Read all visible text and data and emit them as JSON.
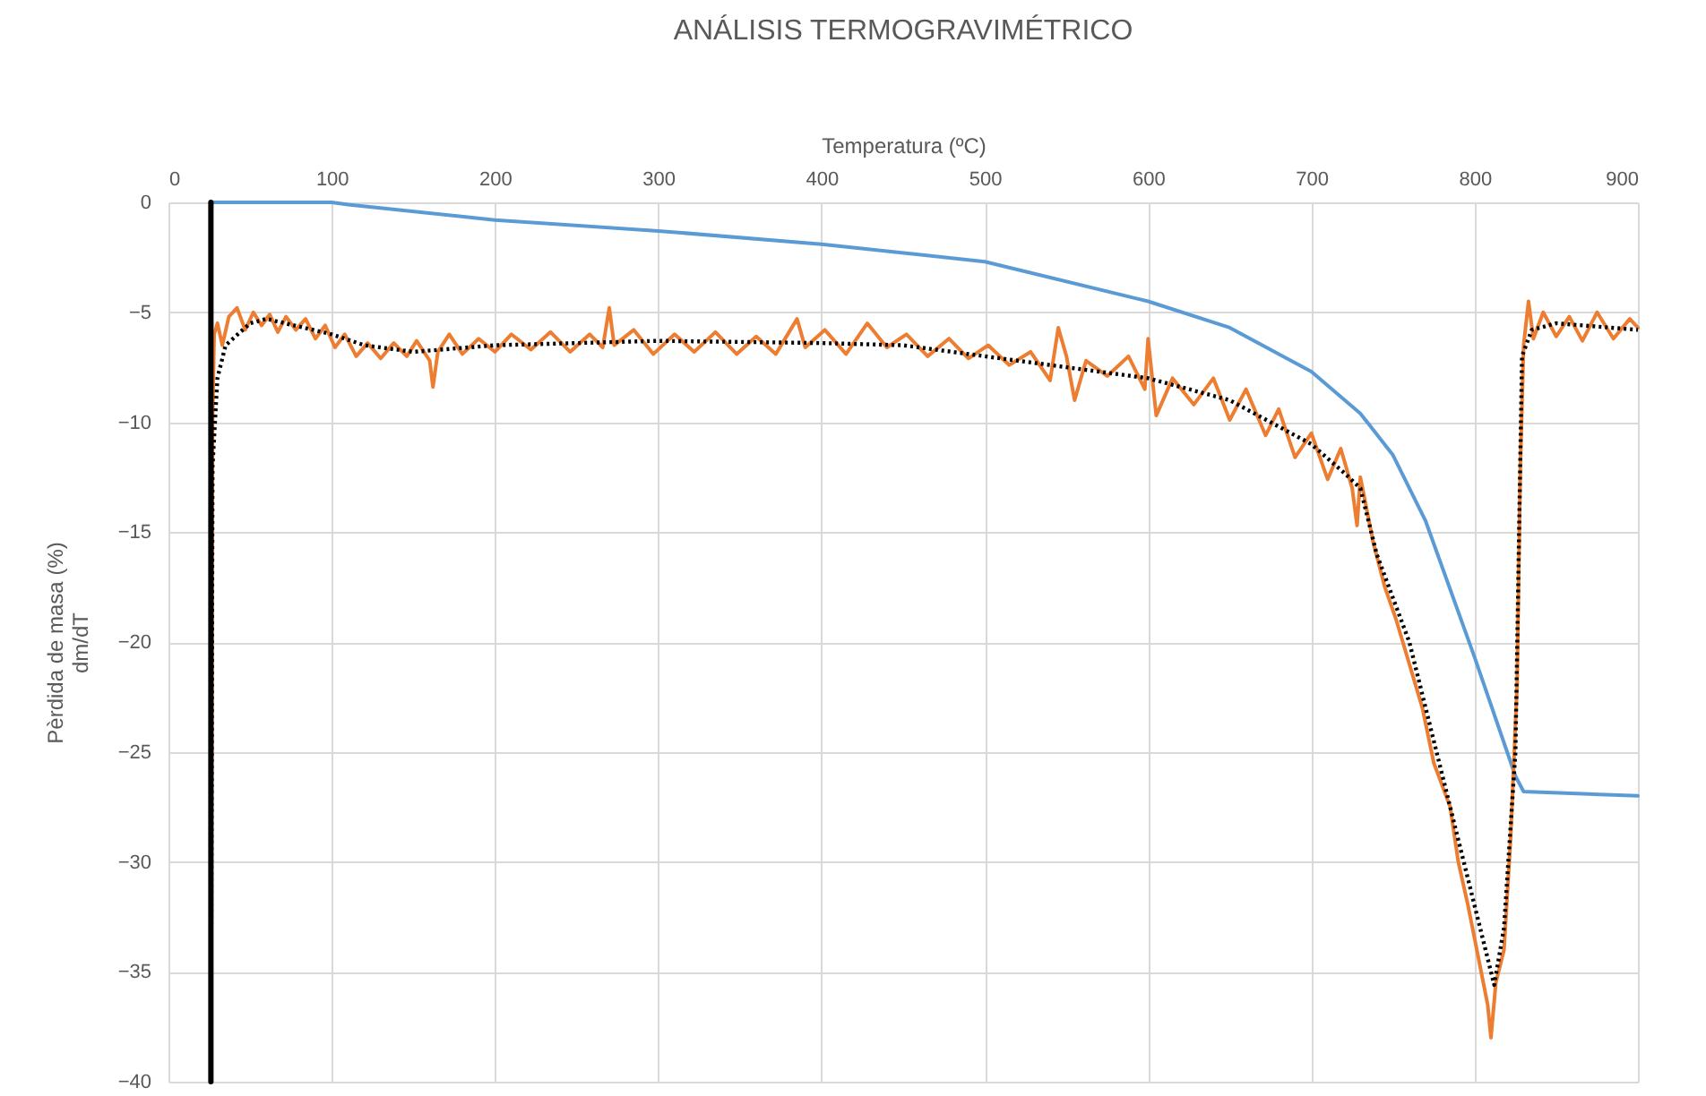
{
  "chart_data": {
    "type": "line",
    "title": "ANÁLISIS TERMOGRAVIMÉTRICO",
    "xlabel": "Temperatura (ºC)",
    "ylabel": "Pèrdida de masa (%)\ndm/dT",
    "xlim": [
      0,
      900
    ],
    "xticks": [
      0,
      100,
      200,
      300,
      400,
      500,
      600,
      700,
      800,
      900
    ],
    "ylim": [
      -40,
      0
    ],
    "yticks": [
      0,
      -5,
      -10,
      -15,
      -20,
      -25,
      -30,
      -35,
      -40
    ],
    "grid": true,
    "series": [
      {
        "color": "#5b9bd5",
        "line_style": "solid",
        "x": [
          26,
          50,
          100,
          110,
          200,
          300,
          400,
          500,
          600,
          650,
          700,
          730,
          750,
          770,
          800,
          825,
          830,
          900
        ],
        "values": [
          0,
          0,
          0,
          -0.1,
          -0.8,
          -1.3,
          -1.9,
          -2.7,
          -4.5,
          -5.7,
          -7.7,
          -9.6,
          -11.5,
          -14.5,
          -20.7,
          -26.1,
          -26.8,
          -27
        ]
      },
      {
        "color": "#ed7d31",
        "line_style": "solid",
        "x": [
          26,
          27,
          28,
          30,
          33,
          37,
          42,
          47,
          52,
          57,
          62,
          67,
          72,
          78,
          84,
          90,
          96,
          102,
          108,
          115,
          122,
          130,
          138,
          146,
          152,
          160,
          162,
          165,
          172,
          180,
          190,
          200,
          210,
          222,
          234,
          246,
          258,
          266,
          270,
          273,
          285,
          297,
          310,
          322,
          335,
          348,
          360,
          372,
          385,
          390,
          402,
          415,
          428,
          440,
          452,
          465,
          478,
          490,
          502,
          515,
          528,
          540,
          545,
          550,
          555,
          562,
          575,
          588,
          598,
          600,
          605,
          615,
          628,
          640,
          650,
          660,
          672,
          680,
          690,
          700,
          710,
          718,
          725,
          728,
          730,
          738,
          745,
          752,
          760,
          768,
          775,
          780,
          785,
          790,
          796,
          800,
          804,
          808,
          810,
          813,
          818,
          822,
          826,
          828,
          830,
          833,
          836,
          842,
          850,
          858,
          866,
          875,
          885,
          895,
          900
        ],
        "values": [
          -40,
          -10,
          -6,
          -5.5,
          -6.5,
          -5.2,
          -4.8,
          -5.8,
          -5,
          -5.6,
          -5.1,
          -5.9,
          -5.2,
          -5.8,
          -5.3,
          -6.2,
          -5.6,
          -6.6,
          -6,
          -7,
          -6.4,
          -7.1,
          -6.4,
          -7,
          -6.3,
          -7.2,
          -8.4,
          -6.8,
          -6,
          -6.9,
          -6.2,
          -6.8,
          -6,
          -6.7,
          -5.9,
          -6.8,
          -6,
          -6.6,
          -4.8,
          -6.5,
          -5.8,
          -6.9,
          -6,
          -6.8,
          -5.9,
          -6.9,
          -6.1,
          -6.9,
          -5.3,
          -6.6,
          -5.8,
          -6.9,
          -5.5,
          -6.6,
          -6,
          -7,
          -6.2,
          -7.1,
          -6.5,
          -7.4,
          -6.8,
          -8.1,
          -5.7,
          -7,
          -9,
          -7.2,
          -7.9,
          -7,
          -8.5,
          -6.2,
          -9.7,
          -8,
          -9.2,
          -8,
          -9.9,
          -8.5,
          -10.6,
          -9.4,
          -11.6,
          -10.5,
          -12.6,
          -11.2,
          -13,
          -14.7,
          -12.5,
          -15.5,
          -17.5,
          -19,
          -21,
          -23,
          -25.5,
          -26.5,
          -27.5,
          -30,
          -32,
          -33.5,
          -35,
          -36.5,
          -38,
          -35.5,
          -34,
          -29,
          -22,
          -12,
          -6.5,
          -4.5,
          -6.2,
          -5,
          -6.1,
          -5.2,
          -6.3,
          -5,
          -6.2,
          -5.3,
          -5.7
        ]
      },
      {
        "color": "#000000",
        "line_style": "dotted",
        "x": [
          26,
          27,
          30,
          35,
          50,
          60,
          100,
          120,
          150,
          200,
          300,
          400,
          450,
          500,
          550,
          600,
          650,
          700,
          720,
          730,
          740,
          760,
          780,
          800,
          812,
          818,
          825,
          829,
          835,
          850,
          900
        ],
        "values": [
          -40,
          -12,
          -8,
          -6.5,
          -5.5,
          -5.3,
          -6,
          -6.5,
          -6.8,
          -6.5,
          -6.3,
          -6.4,
          -6.5,
          -7,
          -7.5,
          -8,
          -9,
          -11,
          -12.3,
          -13,
          -16,
          -20,
          -26,
          -32,
          -35.6,
          -33,
          -25,
          -7,
          -5.8,
          -5.5,
          -5.8
        ]
      },
      {
        "color": "#000000",
        "line_style": "solid",
        "x": [
          26,
          26
        ],
        "values": [
          0,
          -40
        ]
      }
    ]
  }
}
